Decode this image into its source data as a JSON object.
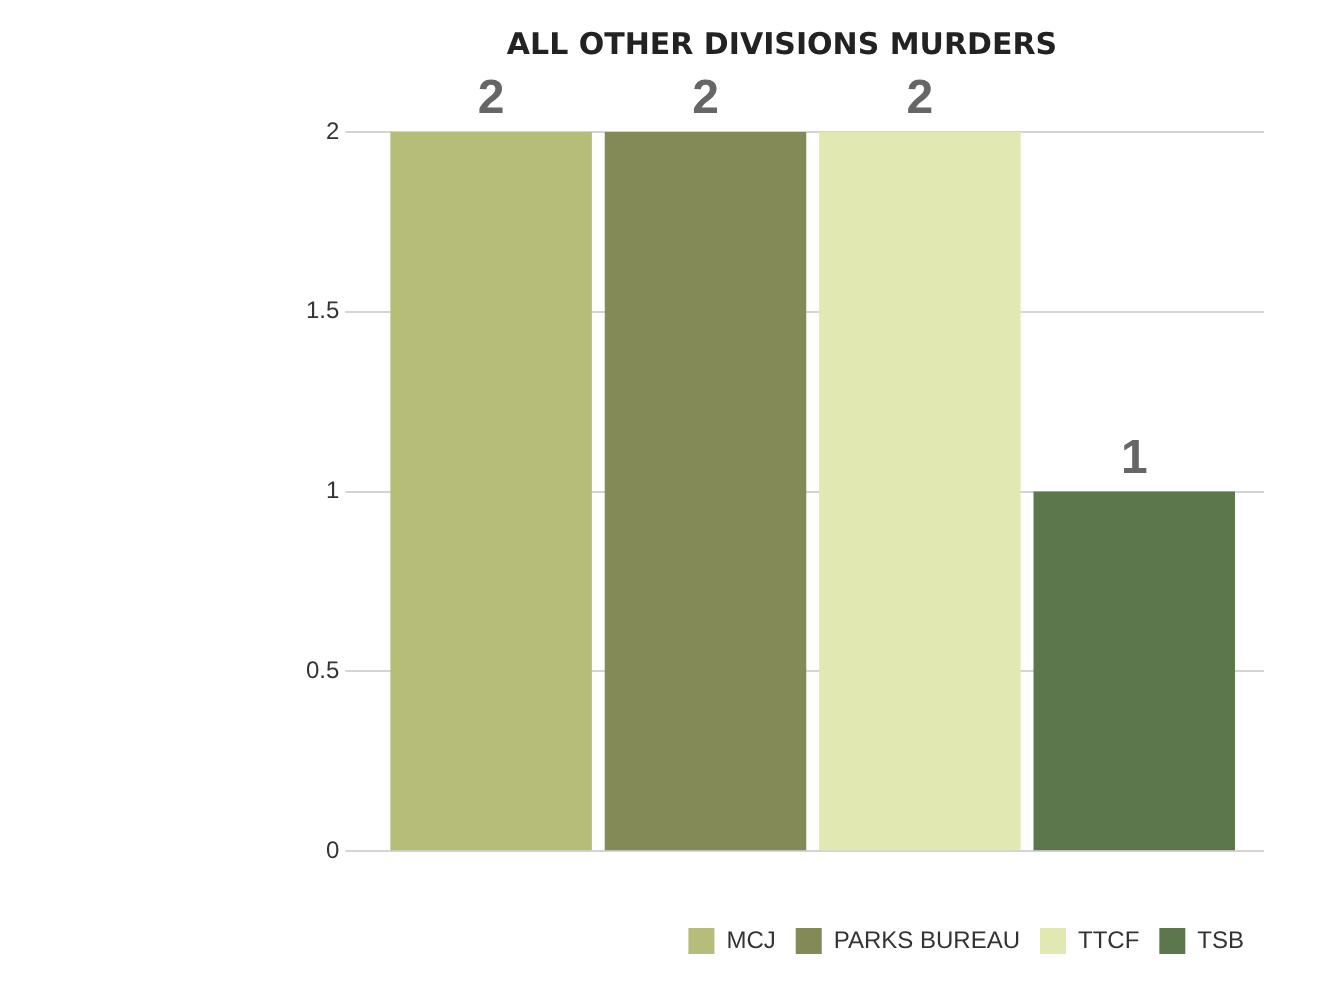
{
  "chart_data": {
    "type": "bar",
    "title": "ALL OTHER DIVISIONS MURDERS",
    "categories": [
      null
    ],
    "series": [
      {
        "name": "MCJ",
        "color": "#b5bd78",
        "values": [
          2
        ]
      },
      {
        "name": "PARKS BUREAU",
        "color": "#838a58",
        "values": [
          2
        ]
      },
      {
        "name": "TTCF",
        "color": "#e2e8b2",
        "values": [
          2
        ]
      },
      {
        "name": "TSB",
        "color": "#5c774c",
        "values": [
          1
        ]
      }
    ],
    "ylim": [
      0,
      2
    ],
    "yticks": [
      0,
      0.5,
      1,
      1.5,
      2
    ],
    "grid": "y",
    "legend": "bottom",
    "data_labels": true
  }
}
